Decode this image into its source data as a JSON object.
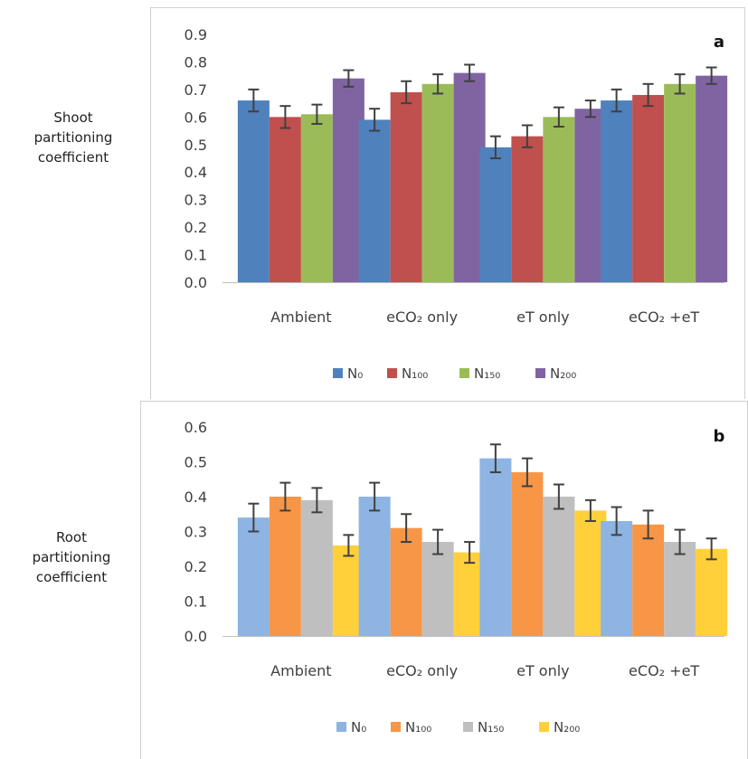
{
  "panels": [
    {
      "ylabel_lines": [
        "Shoot",
        "partitioning",
        "coefficient"
      ],
      "panel_letter": "a",
      "chart_data": {
        "type": "bar",
        "categories": [
          "Ambient",
          "eCO₂ only",
          "eT only",
          "eCO₂ +eT"
        ],
        "series": [
          {
            "name": "N₀",
            "color": "#4f81bd",
            "values": [
              0.66,
              0.59,
              0.49,
              0.66
            ],
            "errors": [
              0.04,
              0.04,
              0.04,
              0.04
            ]
          },
          {
            "name": "N₁₀₀",
            "color": "#c0504d",
            "values": [
              0.6,
              0.69,
              0.53,
              0.68
            ],
            "errors": [
              0.04,
              0.04,
              0.04,
              0.04
            ]
          },
          {
            "name": "N₁₅₀",
            "color": "#9bbb59",
            "values": [
              0.61,
              0.72,
              0.6,
              0.72
            ],
            "errors": [
              0.035,
              0.035,
              0.035,
              0.035
            ]
          },
          {
            "name": "N₂₀₀",
            "color": "#8064a2",
            "values": [
              0.74,
              0.76,
              0.63,
              0.75
            ],
            "errors": [
              0.03,
              0.03,
              0.03,
              0.03
            ]
          }
        ],
        "ylim": [
          0,
          0.9
        ],
        "yticks": [
          "0.0",
          "0.1",
          "0.2",
          "0.3",
          "0.4",
          "0.5",
          "0.6",
          "0.7",
          "0.8",
          "0.9"
        ],
        "grid": false,
        "legend": "bottom"
      }
    },
    {
      "ylabel_lines": [
        "Root",
        "partitioning",
        "coefficient"
      ],
      "panel_letter": "b",
      "chart_data": {
        "type": "bar",
        "categories": [
          "Ambient",
          "eCO₂ only",
          "eT only",
          "eCO₂ +eT"
        ],
        "series": [
          {
            "name": "N₀",
            "color": "#8db4e2",
            "values": [
              0.34,
              0.4,
              0.51,
              0.33
            ],
            "errors": [
              0.04,
              0.04,
              0.04,
              0.04
            ]
          },
          {
            "name": "N₁₀₀",
            "color": "#f79646",
            "values": [
              0.4,
              0.31,
              0.47,
              0.32
            ],
            "errors": [
              0.04,
              0.04,
              0.04,
              0.04
            ]
          },
          {
            "name": "N₁₅₀",
            "color": "#bfbfbf",
            "values": [
              0.39,
              0.27,
              0.4,
              0.27
            ],
            "errors": [
              0.035,
              0.035,
              0.035,
              0.035
            ]
          },
          {
            "name": "N₂₀₀",
            "color": "#ffd03a",
            "values": [
              0.26,
              0.24,
              0.36,
              0.25
            ],
            "errors": [
              0.03,
              0.03,
              0.03,
              0.03
            ]
          }
        ],
        "ylim": [
          0,
          0.6
        ],
        "yticks": [
          "0.0",
          "0.1",
          "0.2",
          "0.3",
          "0.4",
          "0.5",
          "0.6"
        ],
        "grid": false,
        "legend": "bottom"
      }
    }
  ]
}
